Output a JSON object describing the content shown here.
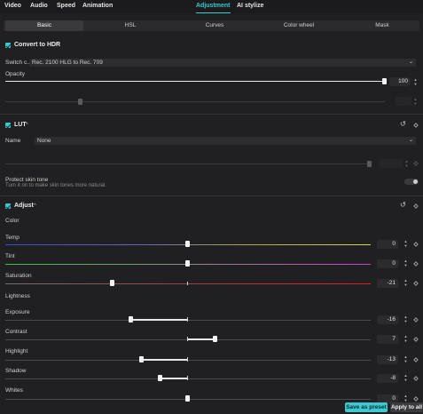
{
  "top_tabs": [
    {
      "label": "Video"
    },
    {
      "label": "Audio"
    },
    {
      "label": "Speed"
    },
    {
      "label": "Animation"
    },
    {
      "label": "Adjustment"
    },
    {
      "label": "AI stylize"
    }
  ],
  "active_top_tab": "Adjustment",
  "sub_tabs": [
    {
      "label": "Basic"
    },
    {
      "label": "HSL"
    },
    {
      "label": "Curves"
    },
    {
      "label": "Color wheel"
    },
    {
      "label": "Mask"
    }
  ],
  "active_sub_tab": "Basic",
  "hdr": {
    "title": "Convert to HDR",
    "caret": "^",
    "switch_label": "Switch c...",
    "switch_value": "Rec. 2100 HLG to Rec. 709",
    "opacity_label": "Opacity",
    "opacity_value": "100"
  },
  "lut": {
    "title": "LUT",
    "caret": "^",
    "name_label": "Name",
    "name_value": "None",
    "protect_label": "Protect skin tone",
    "protect_hint": "Turn it on to make skin tones more natural."
  },
  "adjust": {
    "title": "Adjust",
    "caret": "^",
    "color_group": "Color",
    "lightness_group": "Lightness",
    "sliders": [
      {
        "label": "Temp",
        "value": "0",
        "level": 0
      },
      {
        "label": "Tint",
        "value": "0",
        "level": 0
      },
      {
        "label": "Saturation",
        "value": "-21",
        "level": -21
      },
      {
        "label": "Exposure",
        "value": "-16",
        "level": -16
      },
      {
        "label": "Contrast",
        "value": "7",
        "level": 7
      },
      {
        "label": "Highlight",
        "value": "-13",
        "level": -13
      },
      {
        "label": "Shadow",
        "value": "-8",
        "level": -8
      },
      {
        "label": "Whites",
        "value": "0",
        "level": 0
      }
    ]
  },
  "footer": {
    "save_preset": "Save as preset",
    "apply_all": "Apply to all"
  },
  "colors": {
    "accent": "#3cc9cf"
  }
}
